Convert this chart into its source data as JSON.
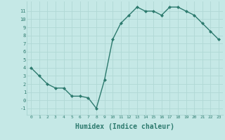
{
  "x": [
    0,
    1,
    2,
    3,
    4,
    5,
    6,
    7,
    8,
    9,
    10,
    11,
    12,
    13,
    14,
    15,
    16,
    17,
    18,
    19,
    20,
    21,
    22,
    23
  ],
  "y": [
    4,
    3,
    2,
    1.5,
    1.5,
    0.5,
    0.5,
    0.3,
    -1,
    2.5,
    7.5,
    9.5,
    10.5,
    11.5,
    11,
    11,
    10.5,
    11.5,
    11.5,
    11,
    10.5,
    9.5,
    8.5,
    7.5
  ],
  "line_color": "#2d7a6e",
  "marker": "D",
  "marker_size": 2,
  "line_width": 1.0,
  "xlabel": "Humidex (Indice chaleur)",
  "xlabel_fontsize": 7,
  "bg_color": "#c5e8e6",
  "grid_color": "#b0d8d5",
  "tick_color": "#2d7a6e",
  "text_color": "#2d7a6e",
  "xlim": [
    -0.5,
    23.5
  ],
  "ylim": [
    -1.8,
    12.2
  ],
  "yticks": [
    -1,
    0,
    1,
    2,
    3,
    4,
    5,
    6,
    7,
    8,
    9,
    10,
    11
  ],
  "xticks": [
    0,
    1,
    2,
    3,
    4,
    5,
    6,
    7,
    8,
    9,
    10,
    11,
    12,
    13,
    14,
    15,
    16,
    17,
    18,
    19,
    20,
    21,
    22,
    23
  ]
}
